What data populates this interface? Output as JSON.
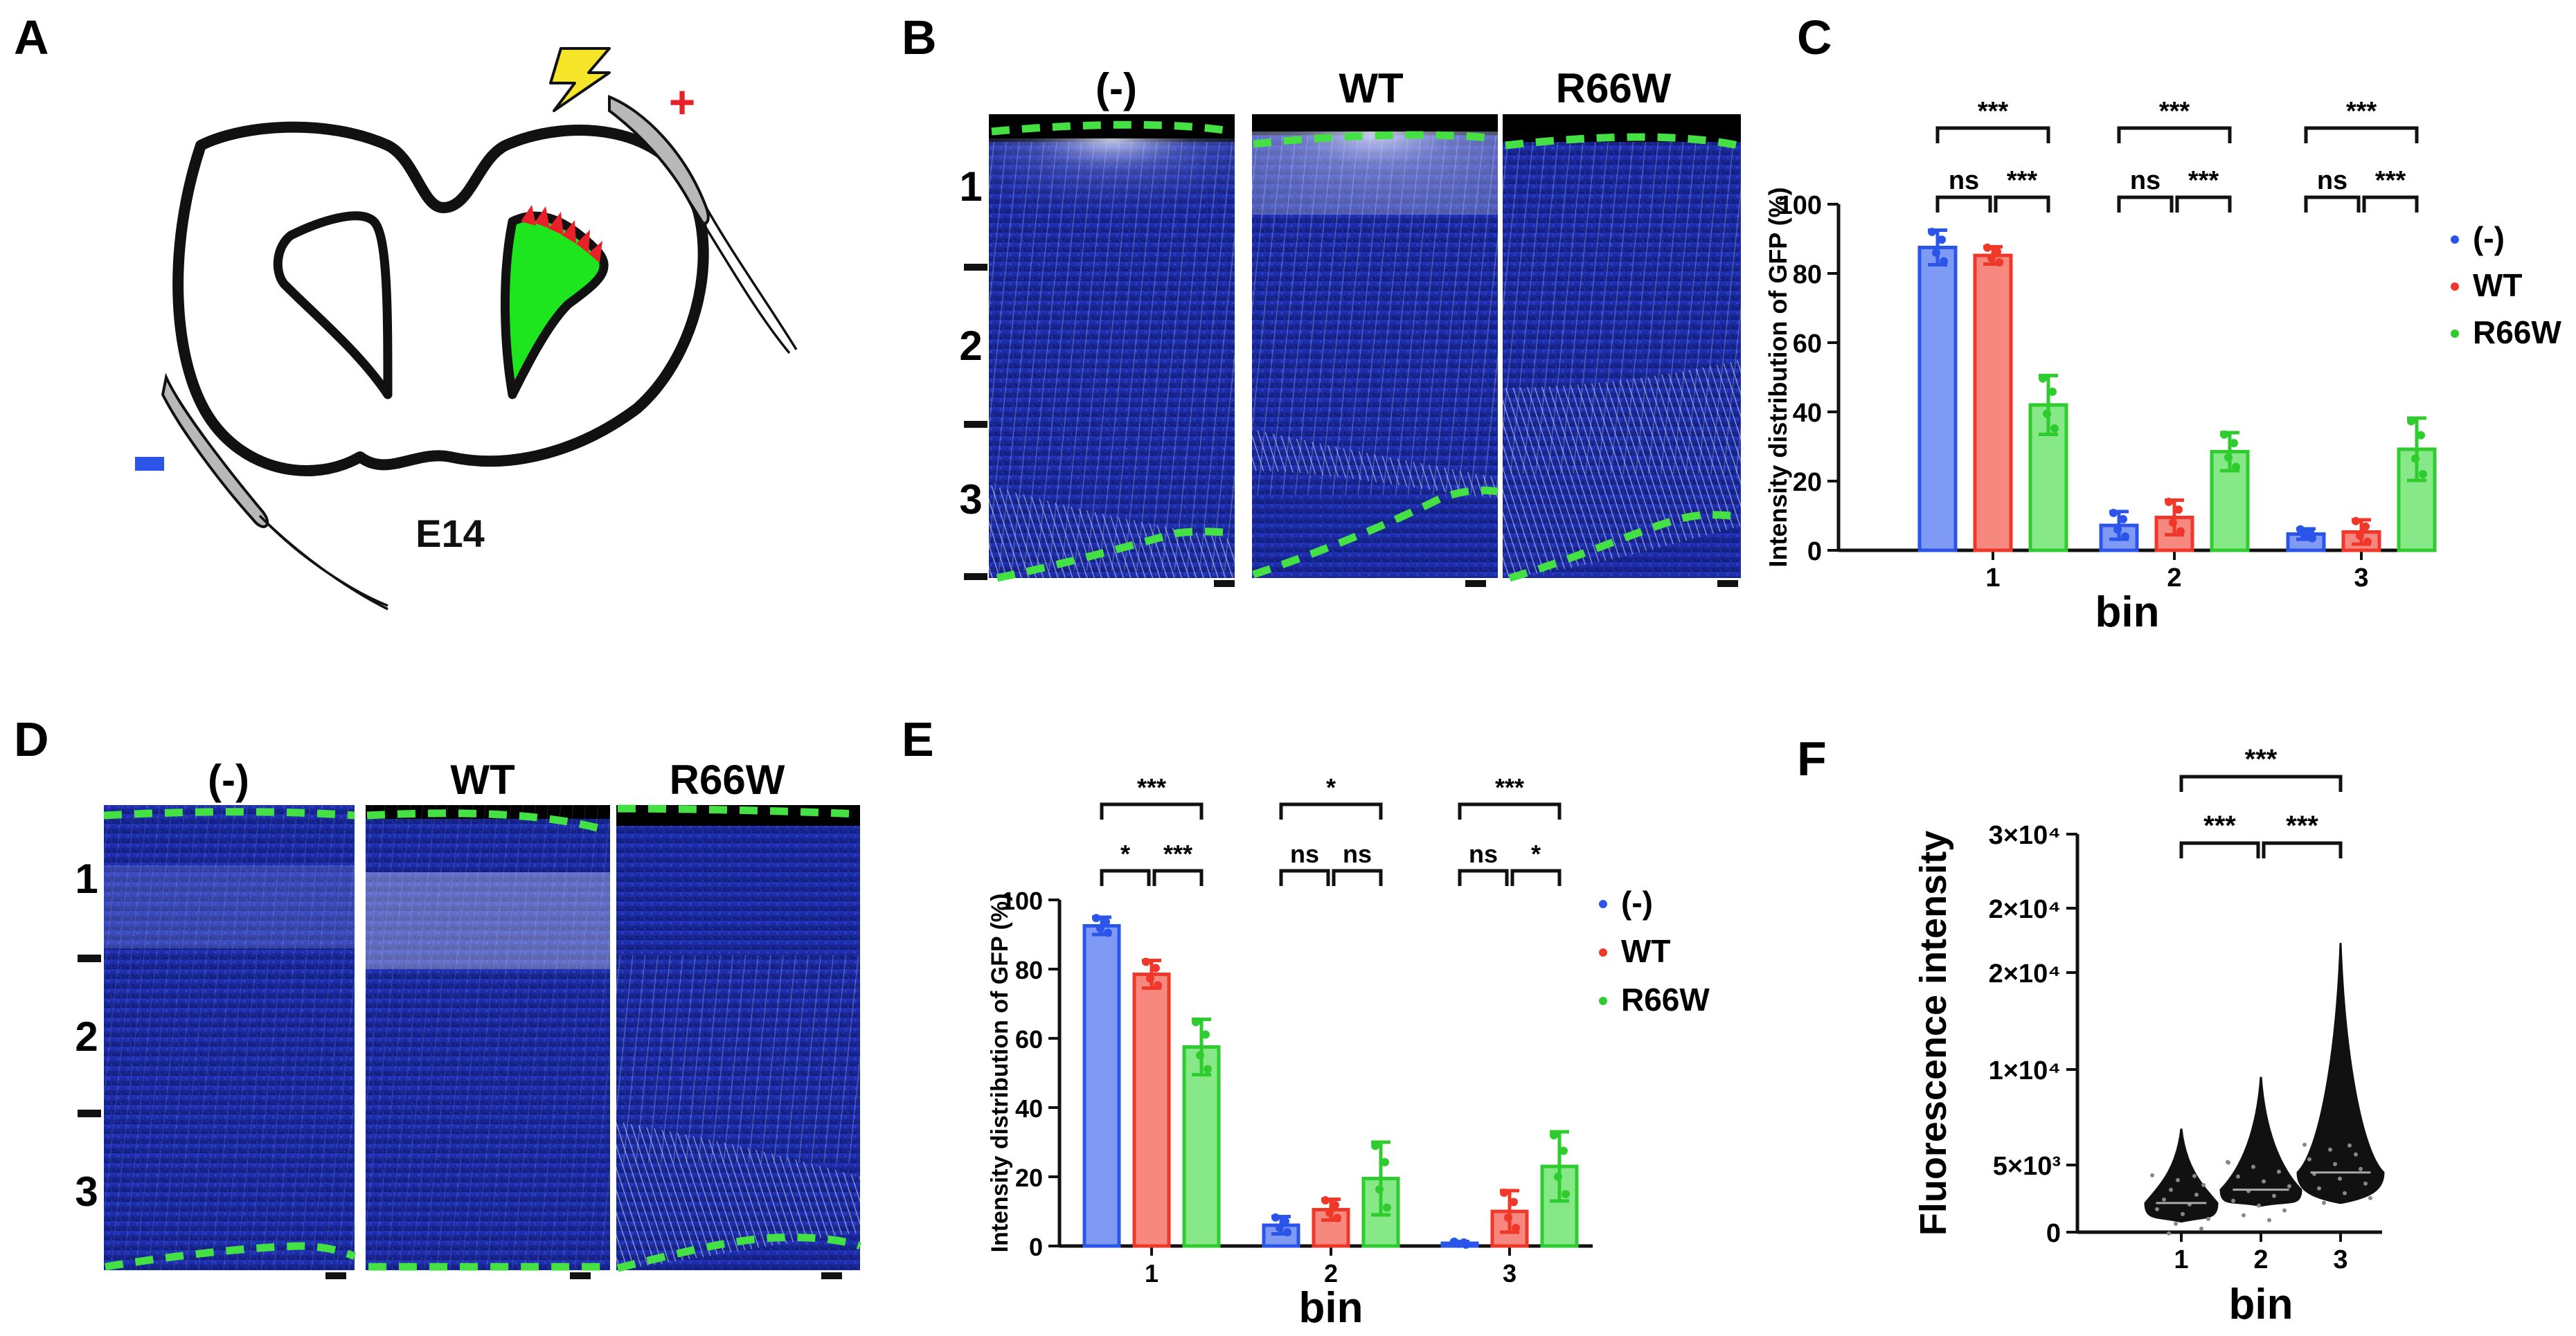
{
  "panels": {
    "A": {
      "letter": "A",
      "stage_label": "E14",
      "plus_sign": "+",
      "minus_sign": "−"
    },
    "B": {
      "letter": "B",
      "conditions": [
        "(-)",
        "WT",
        "R66W"
      ],
      "bins": [
        "1",
        "2",
        "3"
      ]
    },
    "D": {
      "letter": "D",
      "conditions": [
        "(-)",
        "WT",
        "R66W"
      ],
      "bins": [
        "1",
        "2",
        "3"
      ]
    },
    "C": {
      "letter": "C"
    },
    "E": {
      "letter": "E"
    },
    "F": {
      "letter": "F"
    }
  },
  "colors": {
    "neg": "#2b55e8",
    "wt": "#f0382a",
    "r66w": "#2ecc2e",
    "dapi": "#1a2a9c",
    "dash": "#44e044",
    "tissue_green": "#1ee61e"
  },
  "chart_data": [
    {
      "id": "C",
      "type": "bar",
      "categories": [
        "1",
        "2",
        "3"
      ],
      "series": [
        {
          "name": "(-)",
          "values": [
            87.5,
            7.2,
            4.7
          ],
          "errors": [
            5.0,
            4.0,
            1.5
          ]
        },
        {
          "name": "WT",
          "values": [
            85.2,
            9.5,
            5.3
          ],
          "errors": [
            2.5,
            5.0,
            3.5
          ]
        },
        {
          "name": "R66W",
          "values": [
            42.0,
            28.5,
            29.2
          ],
          "errors": [
            8.5,
            5.5,
            9.0
          ]
        }
      ],
      "xlabel": "bin",
      "ylabel": "Intensity distribution of GFP (%)",
      "ylim": [
        0,
        100
      ],
      "yticks": [
        "0",
        "20",
        "40",
        "60",
        "80",
        "100"
      ],
      "legend": [
        "(-)",
        "WT",
        "R66W"
      ],
      "significance": [
        {
          "bin": "1",
          "top": "***",
          "left": "ns",
          "right": "***"
        },
        {
          "bin": "2",
          "top": "***",
          "left": "ns",
          "right": "***"
        },
        {
          "bin": "3",
          "top": "***",
          "left": "ns",
          "right": "***"
        }
      ]
    },
    {
      "id": "E",
      "type": "bar",
      "categories": [
        "1",
        "2",
        "3"
      ],
      "series": [
        {
          "name": "(-)",
          "values": [
            92.5,
            6.0,
            0.8
          ],
          "errors": [
            2.5,
            2.5,
            0.5
          ]
        },
        {
          "name": "WT",
          "values": [
            78.5,
            10.5,
            10.0
          ],
          "errors": [
            4.0,
            3.0,
            6.0
          ]
        },
        {
          "name": "R66W",
          "values": [
            57.5,
            19.5,
            23.0
          ],
          "errors": [
            8.0,
            10.5,
            10.0
          ]
        }
      ],
      "xlabel": "bin",
      "ylabel": "Intensity distribution of GFP (%)",
      "ylim": [
        0,
        100
      ],
      "yticks": [
        "0",
        "20",
        "40",
        "60",
        "80",
        "100"
      ],
      "legend": [
        "(-)",
        "WT",
        "R66W"
      ],
      "significance": [
        {
          "bin": "1",
          "top": "***",
          "left": "*",
          "right": "***"
        },
        {
          "bin": "2",
          "top": "*",
          "left": "ns",
          "right": "ns"
        },
        {
          "bin": "3",
          "top": "***",
          "left": "ns",
          "right": "*"
        }
      ]
    },
    {
      "id": "F",
      "type": "violin",
      "categories": [
        "1",
        "2",
        "3"
      ],
      "series": [
        {
          "name": "1",
          "min": 800,
          "median": 2200,
          "max": 7800
        },
        {
          "name": "2",
          "min": 2000,
          "median": 3200,
          "max": 11700
        },
        {
          "name": "3",
          "min": 2200,
          "median": 4500,
          "max": 21800
        }
      ],
      "xlabel": "bin",
      "ylabel": "Fluorescence intensity",
      "ylim": [
        0,
        30000
      ],
      "yticks": [
        "0",
        "5×10³",
        "1×10⁴",
        "2×10⁴",
        "2×10⁴",
        "3×10⁴"
      ],
      "significance": [
        {
          "pair": "1-2",
          "label": "***"
        },
        {
          "pair": "2-3",
          "label": "***"
        },
        {
          "pair": "1-3",
          "label": "***"
        }
      ]
    }
  ]
}
